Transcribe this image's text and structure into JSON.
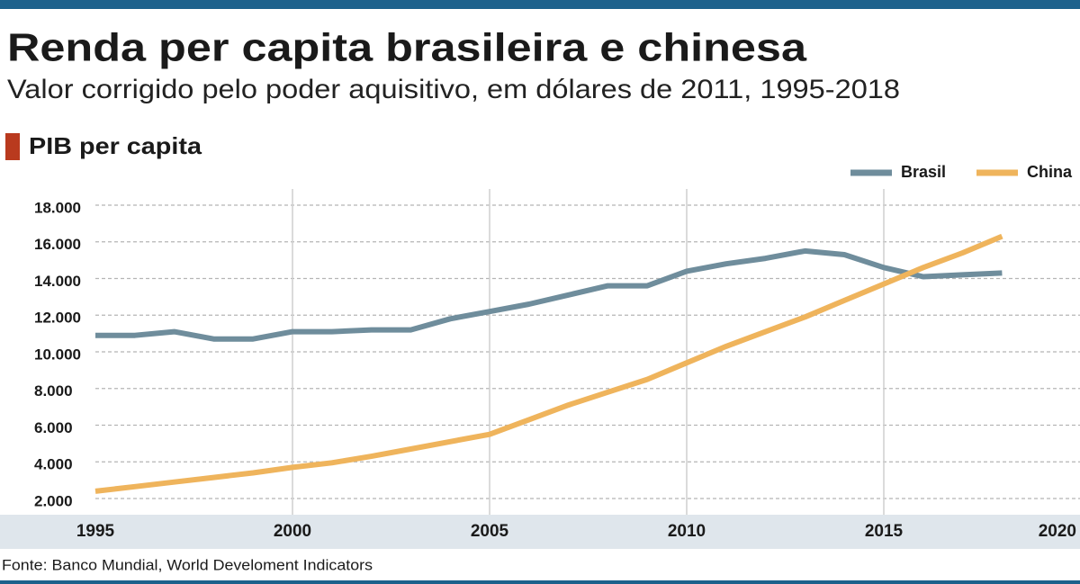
{
  "chart_data": {
    "type": "line",
    "title": "Renda per capita brasileira e chinesa",
    "subtitle": "Valor corrigido pelo poder aquisitivo, em dólares de 2011, 1995-2018",
    "section_label": "PIB per capita",
    "source": "Fonte: Banco Mundial, World Develoment Indicators",
    "x": [
      1995,
      1996,
      1997,
      1998,
      1999,
      2000,
      2001,
      2002,
      2003,
      2004,
      2005,
      2006,
      2007,
      2008,
      2009,
      2010,
      2011,
      2012,
      2013,
      2014,
      2015,
      2016,
      2017,
      2018
    ],
    "series": [
      {
        "name": "Brasil",
        "color": "#6f8d9c",
        "values": [
          10900,
          10900,
          11100,
          10700,
          10700,
          11100,
          11100,
          11200,
          11200,
          11800,
          12200,
          12600,
          13100,
          13600,
          13600,
          14400,
          14800,
          15100,
          15500,
          15300,
          14600,
          14100,
          14200,
          14300
        ]
      },
      {
        "name": "China",
        "color": "#efb45c",
        "values": [
          2400,
          2650,
          2900,
          3150,
          3400,
          3700,
          3950,
          4300,
          4700,
          5100,
          5500,
          6300,
          7100,
          7800,
          8500,
          9400,
          10300,
          11100,
          11900,
          12800,
          13700,
          14600,
          15400,
          16300
        ]
      }
    ],
    "xlim": [
      1995,
      2020
    ],
    "xticks": [
      1995,
      2000,
      2005,
      2010,
      2015,
      2020
    ],
    "ylim": [
      2000,
      18000
    ],
    "yticks": [
      {
        "value": 2000,
        "label": "2.000"
      },
      {
        "value": 4000,
        "label": "4.000"
      },
      {
        "value": 6000,
        "label": "6.000"
      },
      {
        "value": 8000,
        "label": "8.000"
      },
      {
        "value": 10000,
        "label": "10.000"
      },
      {
        "value": 12000,
        "label": "12.000"
      },
      {
        "value": 14000,
        "label": "14.000"
      },
      {
        "value": 16000,
        "label": "16.000"
      },
      {
        "value": 18000,
        "label": "18.000"
      }
    ],
    "grid": true,
    "legend": "top-right"
  }
}
